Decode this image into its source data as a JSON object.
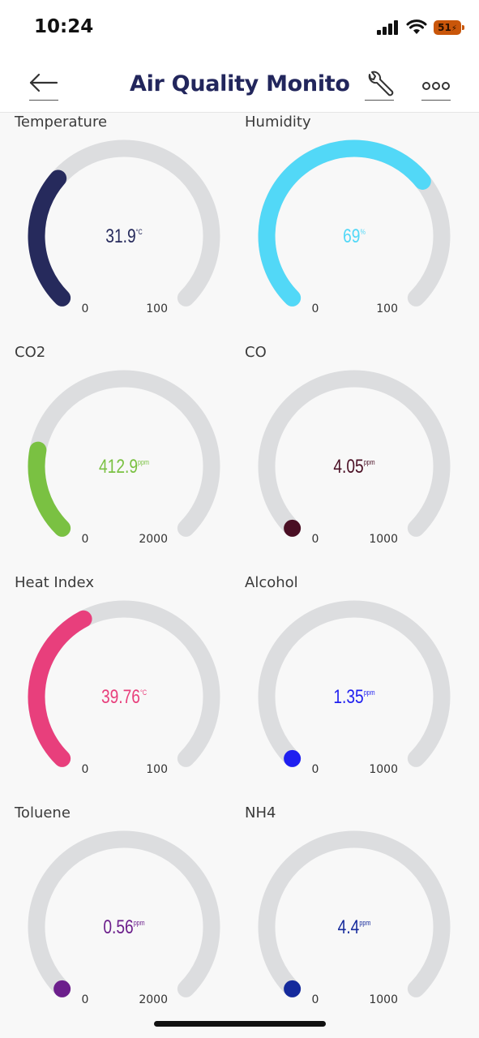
{
  "status_bar": {
    "time": "10:24",
    "battery": "51"
  },
  "header": {
    "title": "Air Quality Monitor..."
  },
  "gauges": [
    {
      "label": "Temperature",
      "value": "31.9",
      "unit": "°C",
      "min": "0",
      "max": "100",
      "fraction": 0.319,
      "color": "#262a5c",
      "style": "arc"
    },
    {
      "label": "Humidity",
      "value": "69",
      "unit": "%",
      "min": "0",
      "max": "100",
      "fraction": 0.69,
      "color": "#52d8f7",
      "style": "arc"
    },
    {
      "label": "CO2",
      "value": "412.9",
      "unit": "ppm",
      "min": "0",
      "max": "2000",
      "fraction": 0.206,
      "color": "#7ac142",
      "style": "arc"
    },
    {
      "label": "CO",
      "value": "4.05",
      "unit": "ppm",
      "min": "0",
      "max": "1000",
      "fraction": 0.004,
      "color": "#4a0f24",
      "style": "dot"
    },
    {
      "label": "Heat Index",
      "value": "39.76",
      "unit": "°C",
      "min": "0",
      "max": "100",
      "fraction": 0.398,
      "color": "#e83f7c",
      "style": "arc"
    },
    {
      "label": "Alcohol",
      "value": "1.35",
      "unit": "ppm",
      "min": "0",
      "max": "1000",
      "fraction": 0.001,
      "color": "#1f1ff0",
      "style": "dot"
    },
    {
      "label": "Toluene",
      "value": "0.56",
      "unit": "ppm",
      "min": "0",
      "max": "2000",
      "fraction": 0.0003,
      "color": "#6c1f8c",
      "style": "dot"
    },
    {
      "label": "NH4",
      "value": "4.4",
      "unit": "ppm",
      "min": "0",
      "max": "1000",
      "fraction": 0.004,
      "color": "#152a9c",
      "style": "dot"
    }
  ]
}
